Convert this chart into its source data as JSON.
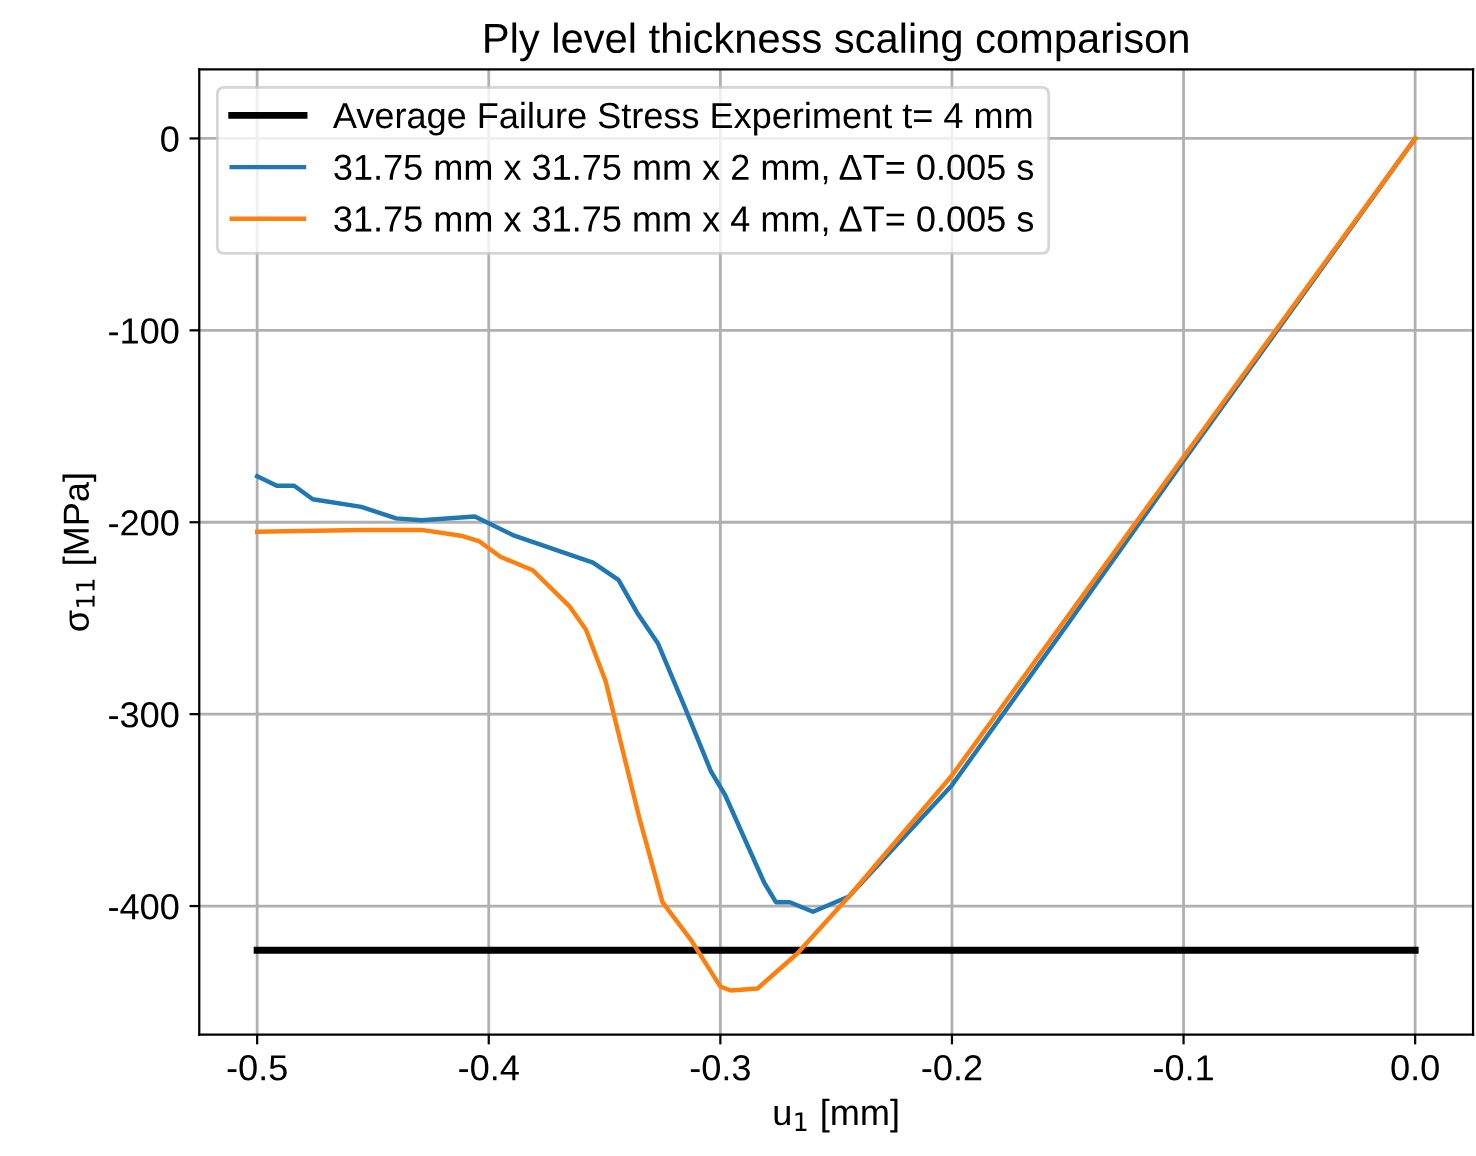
{
  "chart_data": {
    "type": "line",
    "title": "Ply level thickness scaling comparison",
    "xlabel": "u$_{1}$ [mm]",
    "ylabel": "σ$_{11}$ [MPa]",
    "xlim": [
      -0.525,
      0.025
    ],
    "xticks": [
      -0.5,
      -0.4,
      -0.3,
      -0.2,
      -0.1,
      {
        "value": 0,
        "label": "0.0"
      }
    ],
    "ylim": [
      -467,
      36
    ],
    "yticks": [
      -400,
      -300,
      -200,
      -100,
      0
    ],
    "grid": true,
    "legend": "top left",
    "line_style": "solid",
    "marker": "none",
    "series": [
      {
        "name": "Average Failure Stress Experiment t= 4 mm",
        "color": "#000000",
        "x": [
          -0.5,
          0.0
        ],
        "values": [
          -423,
          -423
        ]
      },
      {
        "name": "31.75 mm x 31.75 mm x 2 mm, ΔT= 0.005 s",
        "color": "#1f77b4",
        "x": [
          -0.5,
          -0.4915,
          -0.484,
          -0.476,
          -0.455,
          -0.44,
          -0.429,
          -0.406,
          -0.389,
          -0.355,
          -0.344,
          -0.336,
          -0.327,
          -0.3155,
          -0.304,
          -0.298,
          -0.281,
          -0.276,
          -0.27,
          -0.26,
          -0.2445,
          -0.2,
          -0.15,
          -0.1,
          0.0
        ],
        "values": [
          -176,
          -181,
          -181,
          -188,
          -192,
          -198,
          -199,
          -197,
          -207,
          -221,
          -230,
          -247,
          -263,
          -296,
          -330,
          -342,
          -388,
          -398,
          -398,
          -403,
          -395,
          -337,
          -253,
          -168,
          0
        ]
      },
      {
        "name": "31.75 mm x 31.75 mm x 4 mm, ΔT= 0.005 s",
        "color": "#ff7f0e",
        "x": [
          -0.5,
          -0.455,
          -0.429,
          -0.412,
          -0.404,
          -0.395,
          -0.381,
          -0.365,
          -0.358,
          -0.3495,
          -0.344,
          -0.335,
          -0.325,
          -0.3125,
          -0.3,
          -0.2955,
          -0.284,
          -0.267,
          -0.2445,
          -0.2,
          -0.15,
          -0.1,
          0.0
        ],
        "values": [
          -205,
          -204,
          -204,
          -207,
          -210,
          -218,
          -225,
          -244,
          -256,
          -283,
          -310,
          -354,
          -398,
          -418,
          -442,
          -444,
          -443,
          -425,
          -395,
          -332,
          -249,
          -166,
          0
        ]
      }
    ]
  }
}
